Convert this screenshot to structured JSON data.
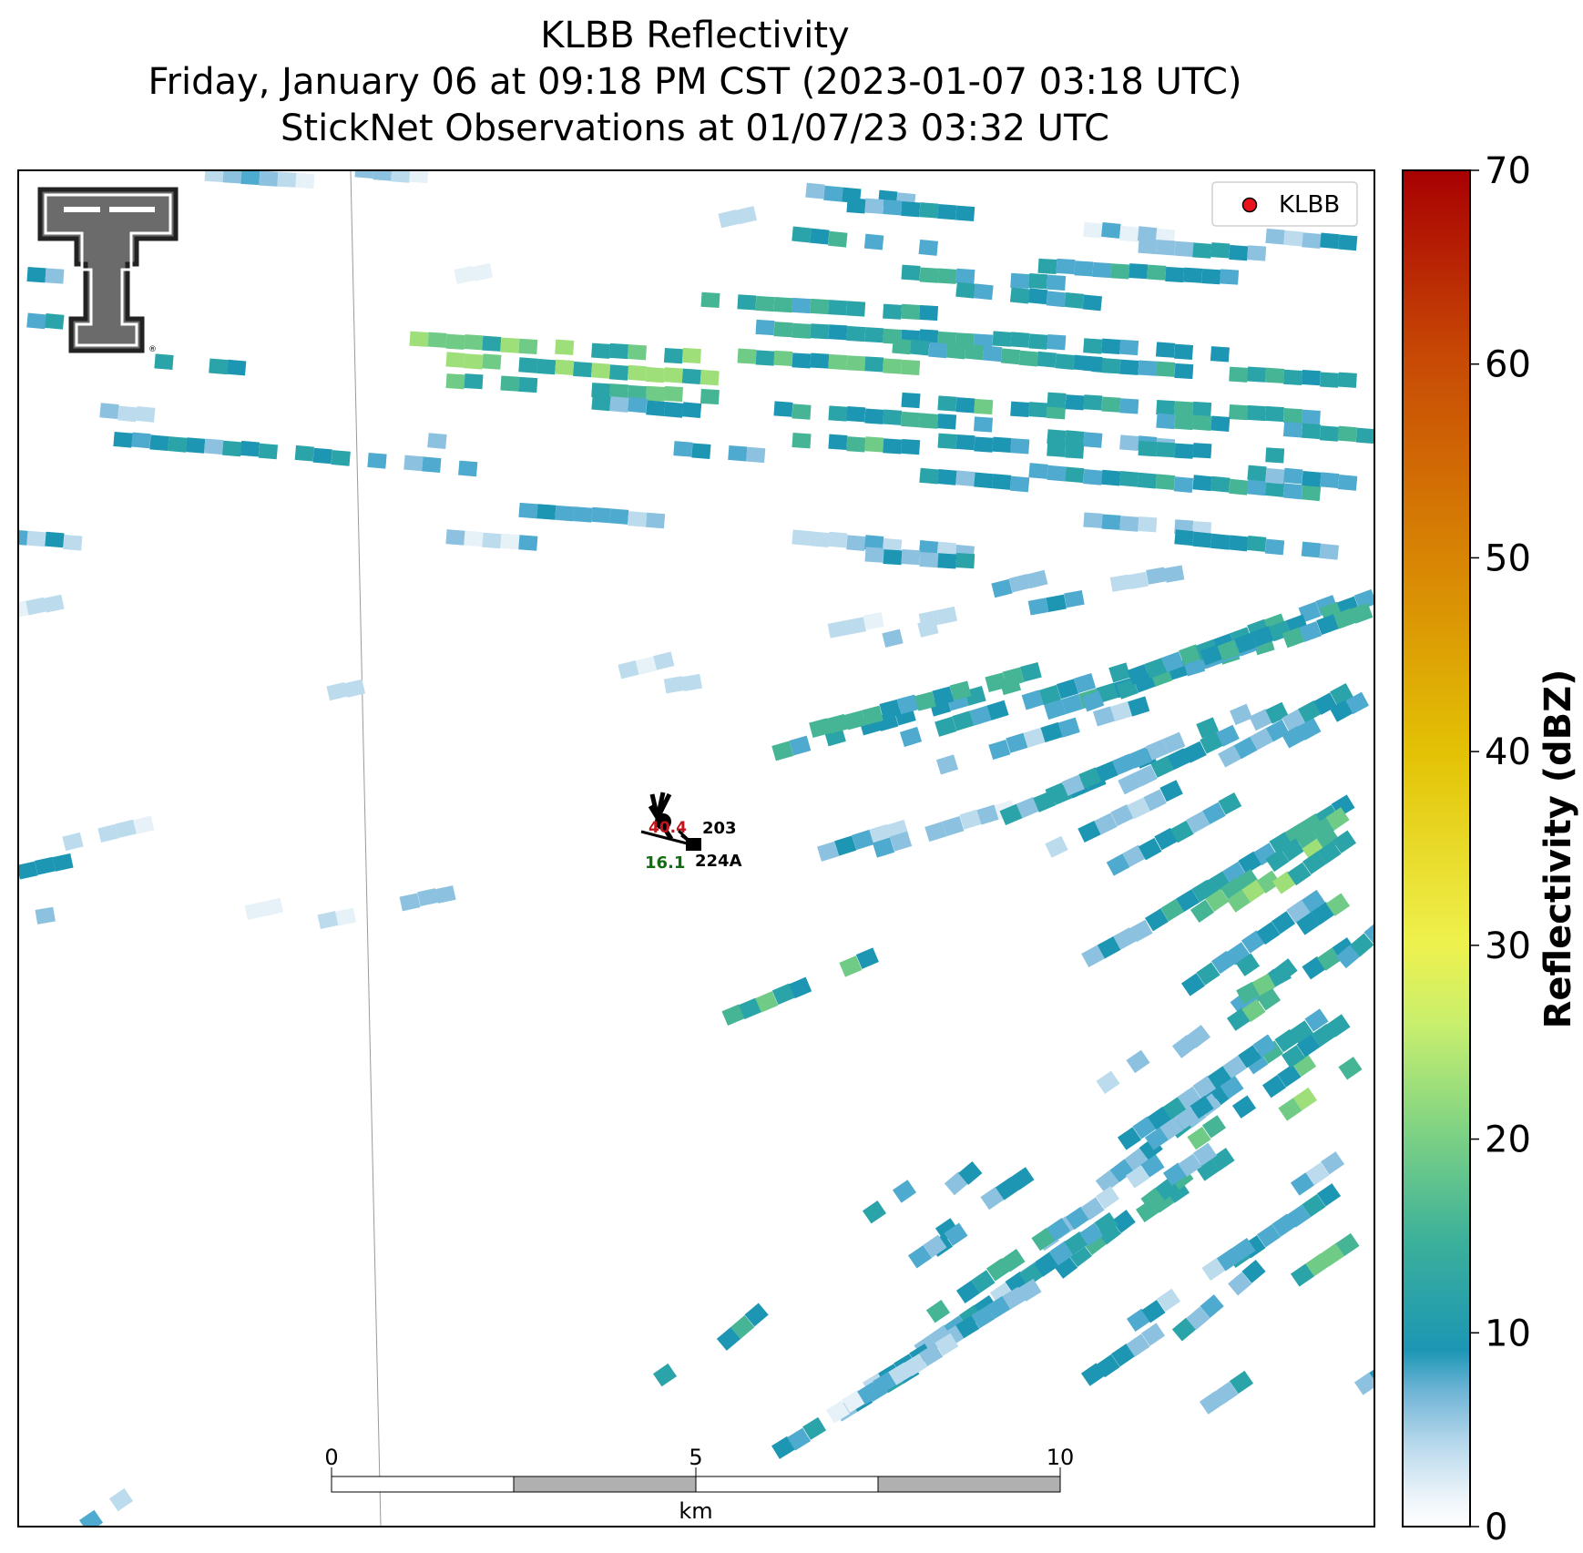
{
  "header": {
    "title": "KLBB Reflectivity",
    "subtitle_time": "Friday, January 06 at 09:18 PM CST (2023-01-07 03:18 UTC)",
    "subtitle_obs": "StickNet Observations at 01/07/23 03:32 UTC"
  },
  "legend": {
    "label": "KLBB",
    "marker_color": "#e8141b",
    "placement": "top-right"
  },
  "logo": {
    "name": "texas-tech-double-t",
    "text": "TT"
  },
  "colorbar": {
    "label": "Reflectivity (dBZ)",
    "range": [
      0,
      70
    ],
    "ticks": [
      "0",
      "10",
      "20",
      "30",
      "40",
      "50",
      "60",
      "70"
    ],
    "colors": [
      "#ffffff",
      "#d3e6f3",
      "#8fc3e0",
      "#1c96b4",
      "#2fa7a0",
      "#6dcc8a",
      "#c4ef6f",
      "#eef14d",
      "#e4c40a",
      "#dc9203",
      "#d06006",
      "#c02c05",
      "#a80002"
    ]
  },
  "scalebar": {
    "ticks": [
      "0",
      "5",
      "10"
    ],
    "unit": "km"
  },
  "stations": [
    {
      "id": "203",
      "temperature": "",
      "dewpoint": ""
    },
    {
      "id": "224A",
      "temperature": "40.4",
      "dewpoint": "16.1"
    }
  ]
}
